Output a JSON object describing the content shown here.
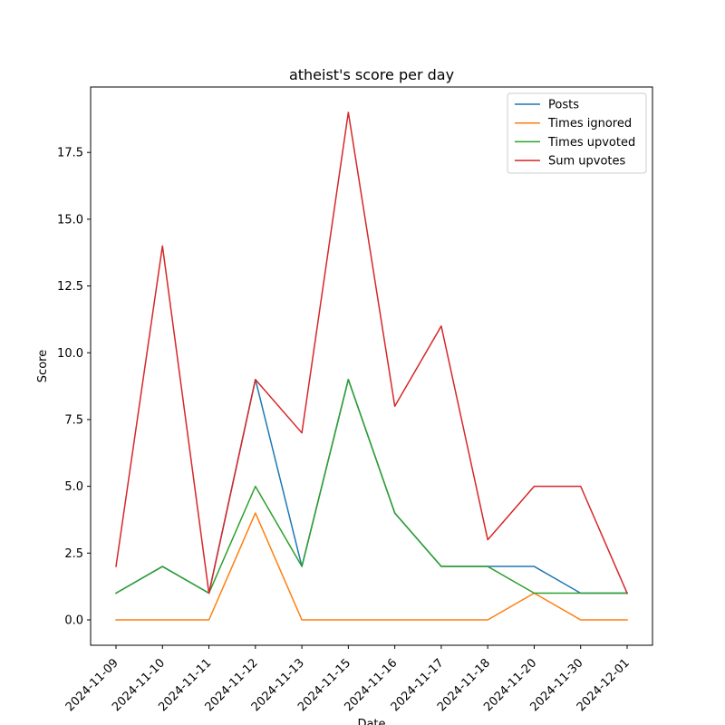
{
  "chart_data": {
    "type": "line",
    "title": "atheist's score per day",
    "xlabel": "Date",
    "ylabel": "Score",
    "categories": [
      "2024-11-09",
      "2024-11-10",
      "2024-11-11",
      "2024-11-12",
      "2024-11-13",
      "2024-11-15",
      "2024-11-16",
      "2024-11-17",
      "2024-11-18",
      "2024-11-20",
      "2024-11-30",
      "2024-12-01"
    ],
    "series": [
      {
        "name": "Posts",
        "color": "#1f77b4",
        "values": [
          1,
          2,
          1,
          9,
          2,
          9,
          4,
          2,
          2,
          2,
          1,
          1
        ]
      },
      {
        "name": "Times ignored",
        "color": "#ff7f0e",
        "values": [
          0,
          0,
          0,
          4,
          0,
          0,
          0,
          0,
          0,
          1,
          0,
          0
        ]
      },
      {
        "name": "Times upvoted",
        "color": "#2ca02c",
        "values": [
          1,
          2,
          1,
          5,
          2,
          9,
          4,
          2,
          2,
          1,
          1,
          1
        ]
      },
      {
        "name": "Sum upvotes",
        "color": "#d62728",
        "values": [
          2,
          14,
          1,
          9,
          7,
          19,
          8,
          11,
          3,
          5,
          5,
          1
        ]
      }
    ],
    "ylim": [
      -0.95,
      19.95
    ],
    "yticks": [
      "0.0",
      "2.5",
      "5.0",
      "7.5",
      "10.0",
      "12.5",
      "15.0",
      "17.5"
    ],
    "ytick_values": [
      0,
      2.5,
      5,
      7.5,
      10,
      12.5,
      15,
      17.5
    ],
    "legend": "top-right",
    "grid": false
  }
}
